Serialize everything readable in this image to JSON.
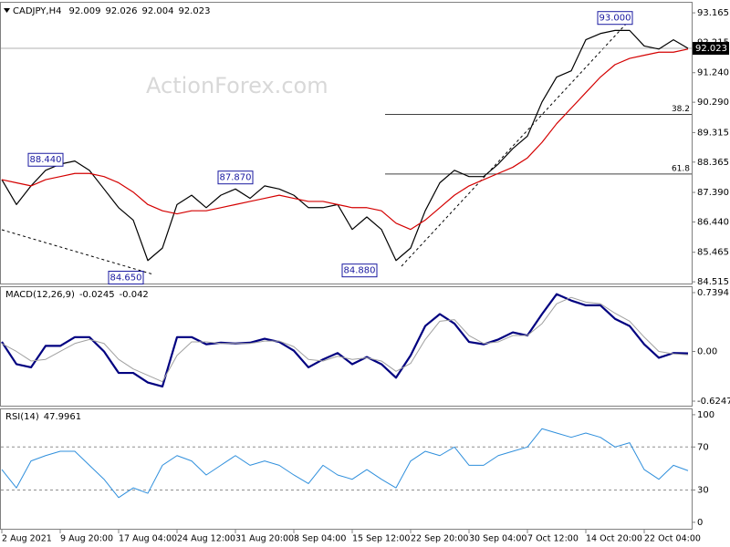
{
  "chart_data": [
    {
      "type": "line",
      "title": "CADJPY,H4",
      "ohlc": [
        92.009,
        92.026,
        92.004,
        92.023
      ],
      "ylim": [
        84.46,
        93.49
      ],
      "yticks": [
        93.165,
        92.215,
        {
          "value": 91.24,
          "label": "91.240"
        },
        {
          "value": 90.29,
          "label": "90.290"
        },
        89.315,
        88.365,
        {
          "value": 87.39,
          "label": "87.390"
        },
        {
          "value": 86.44,
          "label": "86.440"
        },
        85.465,
        84.515
      ],
      "series": [
        {
          "color": "#000000",
          "values": [
            87.8,
            87.0,
            87.6,
            88.1,
            88.3,
            88.4,
            88.1,
            87.5,
            86.9,
            86.5,
            85.2,
            85.6,
            87.0,
            87.3,
            86.9,
            87.3,
            87.5,
            87.2,
            87.6,
            87.5,
            87.3,
            86.9,
            86.9,
            87.0,
            86.2,
            86.6,
            86.2,
            85.2,
            85.6,
            86.8,
            87.7,
            88.1,
            87.9,
            87.9,
            88.3,
            88.8,
            89.2,
            90.3,
            91.1,
            91.3,
            92.3,
            92.5,
            92.6,
            92.6,
            92.1,
            92.0,
            92.3,
            92.023
          ]
        },
        {
          "color": "#d40000",
          "values": [
            87.8,
            87.7,
            87.6,
            87.8,
            87.9,
            88.0,
            88.0,
            87.9,
            87.7,
            87.4,
            87.0,
            86.8,
            86.7,
            86.8,
            86.8,
            86.9,
            87.0,
            87.1,
            87.2,
            87.3,
            87.2,
            87.1,
            87.1,
            87.0,
            86.9,
            86.9,
            86.8,
            86.4,
            86.2,
            86.5,
            86.9,
            87.3,
            87.6,
            87.8,
            88.0,
            88.2,
            88.5,
            89.0,
            89.6,
            90.1,
            90.6,
            91.1,
            91.5,
            91.7,
            91.8,
            91.9,
            91.9,
            92.0
          ]
        }
      ],
      "annotations": [
        {
          "x": 42,
          "value": 93.0,
          "label": "93.000"
        },
        {
          "x": 3,
          "value": 88.44,
          "label": "88.440"
        },
        {
          "x": 16,
          "value": 87.87,
          "label": "87.870"
        },
        {
          "x": 8.5,
          "value": 84.65,
          "label": "84.650"
        },
        {
          "x": 24.5,
          "value": 84.88,
          "label": "84.880"
        }
      ],
      "levels": [
        {
          "value": 89.898,
          "label": "38.2"
        },
        {
          "value": 87.982,
          "label": "61.8"
        }
      ]
    },
    {
      "type": "line",
      "title": "MACD(12,26,9)",
      "readings": [
        -0.0245,
        -0.042
      ],
      "ylim": [
        -0.682,
        0.808
      ],
      "yticks": [
        0.7394,
        {
          "value": 0,
          "label": "0.00"
        },
        -0.6247
      ],
      "series": [
        {
          "color": "#000080",
          "width": 2.2,
          "values": [
            0.12,
            -0.16,
            -0.2,
            0.07,
            0.07,
            0.18,
            0.18,
            0,
            -0.27,
            -0.27,
            -0.39,
            -0.44,
            0.18,
            0.18,
            0.09,
            0.11,
            0.1,
            0.11,
            0.16,
            0.12,
            0.01,
            -0.2,
            -0.1,
            -0.02,
            -0.16,
            -0.07,
            -0.16,
            -0.33,
            -0.05,
            0.32,
            0.47,
            0.35,
            0.12,
            0.09,
            0.15,
            0.24,
            0.2,
            0.47,
            0.72,
            0.64,
            0.58,
            0.58,
            0.41,
            0.32,
            0.09,
            -0.08,
            -0.02,
            -0.0245
          ]
        },
        {
          "color": "#a0a0a0",
          "width": 1,
          "values": [
            0.1,
            0.0,
            -0.12,
            -0.1,
            0.0,
            0.1,
            0.15,
            0.1,
            -0.1,
            -0.22,
            -0.3,
            -0.38,
            -0.05,
            0.12,
            0.12,
            0.1,
            0.1,
            0.1,
            0.13,
            0.13,
            0.06,
            -0.1,
            -0.12,
            -0.06,
            -0.1,
            -0.08,
            -0.12,
            -0.25,
            -0.15,
            0.15,
            0.38,
            0.4,
            0.2,
            0.1,
            0.12,
            0.2,
            0.2,
            0.35,
            0.6,
            0.68,
            0.62,
            0.6,
            0.48,
            0.38,
            0.18,
            0.0,
            -0.03,
            -0.042
          ]
        }
      ]
    },
    {
      "type": "line",
      "title": "RSI(14)",
      "readings": [
        47.9961
      ],
      "ylim": [
        -6,
        105
      ],
      "yticks": [
        100,
        70,
        30,
        0
      ],
      "levels": [
        70,
        30
      ],
      "series": [
        {
          "color": "#2f8fdc",
          "width": 1,
          "values": [
            49,
            32,
            57,
            62,
            66,
            66,
            53,
            40,
            23,
            32,
            27,
            53,
            62,
            57,
            44,
            53,
            62,
            53,
            57,
            53,
            44,
            36,
            53,
            44,
            40,
            49,
            40,
            32,
            57,
            66,
            62,
            70,
            53,
            53,
            62,
            66,
            70,
            87,
            83,
            79,
            83,
            79,
            70,
            74,
            49,
            40,
            53,
            47.9961
          ]
        }
      ],
      "xticks": [
        {
          "value": 0,
          "label": "2 Aug 2021"
        },
        {
          "value": 4,
          "label": "9 Aug 20:00"
        },
        {
          "value": 8,
          "label": "17 Aug 04:00"
        },
        {
          "value": 12,
          "label": "24 Aug 12:00"
        },
        {
          "value": 16,
          "label": "31 Aug 20:00"
        },
        {
          "value": 20,
          "label": "8 Sep 04:00"
        },
        {
          "value": 24,
          "label": "15 Sep 12:00"
        },
        {
          "value": 28,
          "label": "22 Sep 20:00"
        },
        {
          "value": 32,
          "label": "30 Sep 04:00"
        },
        {
          "value": 36,
          "label": "7 Oct 12:00"
        },
        {
          "value": 40,
          "label": "14 Oct 20:00"
        },
        {
          "value": 44,
          "label": "22 Oct 04:00"
        }
      ]
    }
  ]
}
